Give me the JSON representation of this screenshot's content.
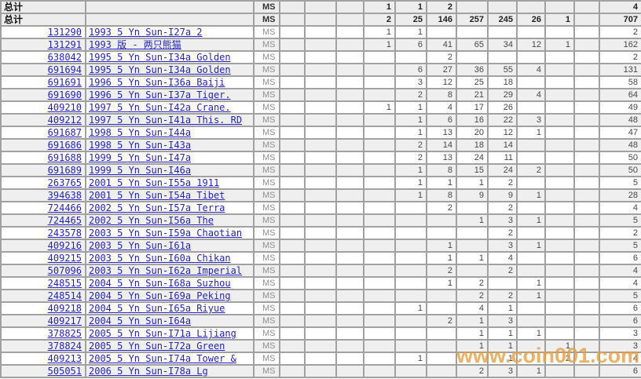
{
  "watermark": "www.coin001.com",
  "table": {
    "ms_label": "MS",
    "total_label": "总计",
    "grade_column_count": 11,
    "rows": [
      {
        "type": "total",
        "id": "",
        "desc": "",
        "grades": [
          "",
          "",
          "",
          "1",
          "1",
          "2",
          "",
          "",
          "",
          "",
          ""
        ],
        "total": "4"
      },
      {
        "type": "total",
        "id": "",
        "desc": "",
        "grades": [
          "",
          "",
          "",
          "2",
          "25",
          "146",
          "257",
          "245",
          "26",
          "1",
          ""
        ],
        "total": "707"
      },
      {
        "type": "detail",
        "id": "131290",
        "desc": "1993 5 Yn Sun-I27a 2",
        "grades": [
          "",
          "",
          "",
          "1",
          "1",
          "",
          "",
          "",
          "",
          "",
          ""
        ],
        "total": "2"
      },
      {
        "type": "detail",
        "id": "131291",
        "desc": "1993 版 - 两只熊猫",
        "grades": [
          "",
          "",
          "",
          "1",
          "6",
          "41",
          "65",
          "34",
          "12",
          "1",
          ""
        ],
        "total": "162"
      },
      {
        "type": "detail",
        "id": "638042",
        "desc": "1995 5 Yn Sun-I34a Golden",
        "grades": [
          "",
          "",
          "",
          "",
          "",
          "2",
          "",
          "",
          "",
          "",
          ""
        ],
        "total": "2"
      },
      {
        "type": "detail",
        "id": "691694",
        "desc": "1995 5 Yn Sun-I34a Golden",
        "grades": [
          "",
          "",
          "",
          "",
          "6",
          "27",
          "36",
          "55",
          "4",
          "",
          ""
        ],
        "total": "131"
      },
      {
        "type": "detail",
        "id": "691691",
        "desc": "1996 5 Yn Sun-I36a Baiji",
        "grades": [
          "",
          "",
          "",
          "",
          "3",
          "12",
          "25",
          "18",
          "",
          "",
          ""
        ],
        "total": "58"
      },
      {
        "type": "detail",
        "id": "691690",
        "desc": "1996 5 Yn Sun-I37a Tiger.",
        "grades": [
          "",
          "",
          "",
          "",
          "2",
          "8",
          "21",
          "29",
          "4",
          "",
          ""
        ],
        "total": "64"
      },
      {
        "type": "detail",
        "id": "409210",
        "desc": "1997 5 Yn Sun-I42a Crane.",
        "grades": [
          "",
          "",
          "",
          "1",
          "1",
          "4",
          "17",
          "26",
          "",
          "",
          ""
        ],
        "total": "49"
      },
      {
        "type": "detail",
        "id": "409212",
        "desc": "1997 5 Yn Sun-I41a This. RD",
        "grades": [
          "",
          "",
          "",
          "",
          "1",
          "6",
          "16",
          "22",
          "3",
          "",
          ""
        ],
        "total": "48"
      },
      {
        "type": "detail",
        "id": "691687",
        "desc": "1998 5 Yn Sun-I44a",
        "grades": [
          "",
          "",
          "",
          "",
          "1",
          "13",
          "20",
          "12",
          "1",
          "",
          ""
        ],
        "total": "47"
      },
      {
        "type": "detail",
        "id": "691686",
        "desc": "1998 5 Yn Sun-I43a",
        "grades": [
          "",
          "",
          "",
          "",
          "2",
          "14",
          "18",
          "14",
          "",
          "",
          ""
        ],
        "total": "48"
      },
      {
        "type": "detail",
        "id": "691688",
        "desc": "1999 5 Yn Sun-I47a",
        "grades": [
          "",
          "",
          "",
          "",
          "2",
          "13",
          "24",
          "11",
          "",
          "",
          ""
        ],
        "total": "50"
      },
      {
        "type": "detail",
        "id": "691689",
        "desc": "1999 5 Yn Sun-I46a",
        "grades": [
          "",
          "",
          "",
          "",
          "1",
          "8",
          "15",
          "24",
          "2",
          "",
          ""
        ],
        "total": "50"
      },
      {
        "type": "detail",
        "id": "263765",
        "desc": "2001 5 Yn Sun-I55a 1911",
        "grades": [
          "",
          "",
          "",
          "",
          "1",
          "1",
          "1",
          "2",
          "",
          "",
          ""
        ],
        "total": "5"
      },
      {
        "type": "detail",
        "id": "394638",
        "desc": "2001 5 Yn Sun-I54a Tibet",
        "grades": [
          "",
          "",
          "",
          "",
          "1",
          "8",
          "9",
          "9",
          "1",
          "",
          ""
        ],
        "total": "28"
      },
      {
        "type": "detail",
        "id": "724466",
        "desc": "2002 5 Yn Sun-I57a Terra",
        "grades": [
          "",
          "",
          "",
          "",
          "",
          "2",
          "",
          "2",
          "",
          "",
          ""
        ],
        "total": "4"
      },
      {
        "type": "detail",
        "id": "724465",
        "desc": "2002 5 Yn Sun-I56a The",
        "grades": [
          "",
          "",
          "",
          "",
          "",
          "",
          "1",
          "3",
          "1",
          "",
          ""
        ],
        "total": "5"
      },
      {
        "type": "detail",
        "id": "243578",
        "desc": "2003 5 Yn Sun-I59a Chaotian",
        "grades": [
          "",
          "",
          "",
          "",
          "",
          "",
          "",
          "2",
          "",
          "",
          ""
        ],
        "total": "2"
      },
      {
        "type": "detail",
        "id": "409216",
        "desc": "2003 5 Yn Sun-I61a",
        "grades": [
          "",
          "",
          "",
          "",
          "",
          "1",
          "",
          "3",
          "1",
          "",
          ""
        ],
        "total": "5"
      },
      {
        "type": "detail",
        "id": "409215",
        "desc": "2003 5 Yn Sun-I60a Chikan",
        "grades": [
          "",
          "",
          "",
          "",
          "",
          "1",
          "1",
          "4",
          "",
          "",
          ""
        ],
        "total": "6"
      },
      {
        "type": "detail",
        "id": "507096",
        "desc": "2003 5 Yn Sun-I62a Imperial",
        "grades": [
          "",
          "",
          "",
          "",
          "",
          "2",
          "",
          "2",
          "",
          "",
          ""
        ],
        "total": "4"
      },
      {
        "type": "detail",
        "id": "248515",
        "desc": "2004 5 Yn Sun-I68a Suzhou",
        "grades": [
          "",
          "",
          "",
          "",
          "",
          "1",
          "2",
          "",
          "1",
          "",
          ""
        ],
        "total": "4"
      },
      {
        "type": "detail",
        "id": "248514",
        "desc": "2004 5 Yn Sun-I69a Peking",
        "grades": [
          "",
          "",
          "",
          "",
          "",
          "",
          "2",
          "2",
          "1",
          "",
          ""
        ],
        "total": "5"
      },
      {
        "type": "detail",
        "id": "409218",
        "desc": "2004 5 Yn Sun-I65a Riyue",
        "grades": [
          "",
          "",
          "",
          "",
          "1",
          "",
          "4",
          "1",
          "",
          "",
          ""
        ],
        "total": "6"
      },
      {
        "type": "detail",
        "id": "409217",
        "desc": "2004 5 Yn Sun-I64a",
        "grades": [
          "",
          "",
          "",
          "",
          "",
          "2",
          "1",
          "3",
          "",
          "",
          ""
        ],
        "total": "6"
      },
      {
        "type": "detail",
        "id": "378825",
        "desc": "2005 5 Yn Sun-I71a Lijiang",
        "grades": [
          "",
          "",
          "",
          "",
          "",
          "",
          "1",
          "1",
          "1",
          "",
          ""
        ],
        "total": "3"
      },
      {
        "type": "detail",
        "id": "378824",
        "desc": "2005 5 Yn Sun-I72a Green",
        "grades": [
          "",
          "",
          "",
          "",
          "",
          "",
          "1",
          "1",
          "",
          "1",
          ""
        ],
        "total": "3"
      },
      {
        "type": "detail",
        "id": "409213",
        "desc": "2005 5 Yn Sun-I74a Tower &",
        "grades": [
          "",
          "",
          "",
          "",
          "1",
          "",
          "",
          "1",
          "",
          "2",
          ""
        ],
        "total": "4"
      },
      {
        "type": "detail",
        "id": "505051",
        "desc": "2006 5 Yn Sun-I78a Lg",
        "grades": [
          "",
          "",
          "",
          "",
          "",
          "",
          "2",
          "3",
          "1",
          "",
          ""
        ],
        "total": "6"
      }
    ]
  },
  "colors": {
    "link_blue": "#2323cb",
    "grid_gray": "#a1a1a1",
    "stripe_gray": "#efefef",
    "watermark_orange": "#e99d3a",
    "number_gray": "#474747",
    "ms_gray": "#8f8f8f"
  }
}
